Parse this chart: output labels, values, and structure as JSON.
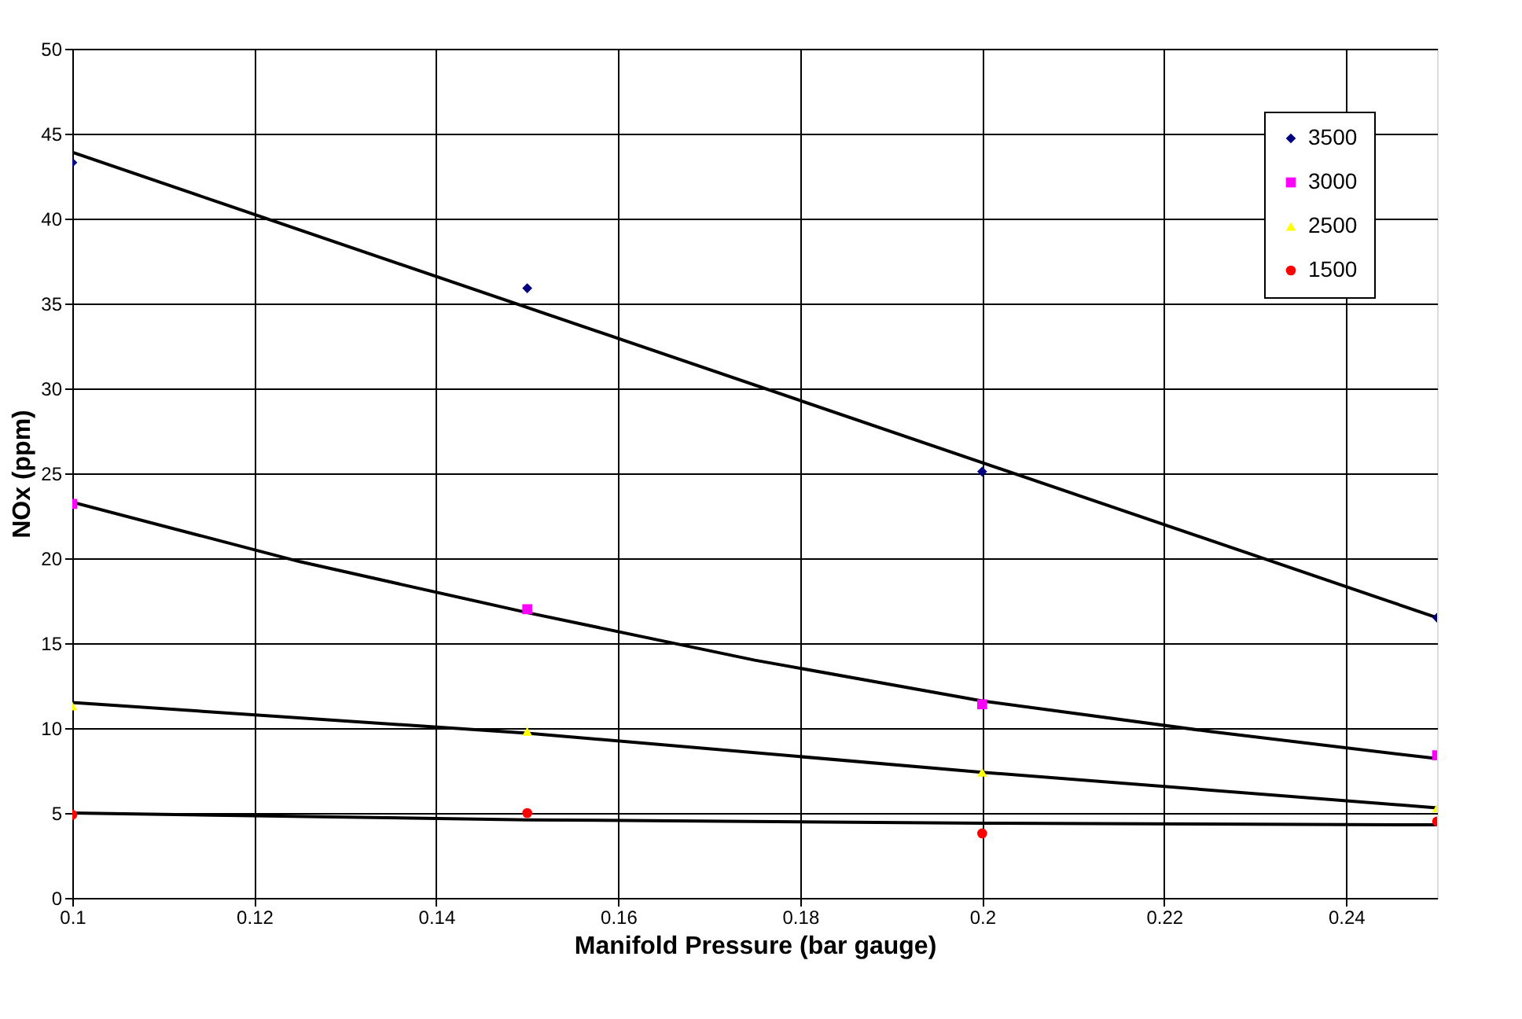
{
  "chart_data": {
    "type": "scatter",
    "xlabel": "Manifold Pressure (bar gauge)",
    "ylabel": "NOx  (ppm)",
    "x": [
      0.1,
      0.15,
      0.2,
      0.25
    ],
    "xlim": [
      0.1,
      0.25
    ],
    "xticks": [
      {
        "value": 0.1,
        "label": "0.1"
      },
      0.12,
      0.14,
      0.16,
      0.18,
      {
        "value": 0.2,
        "label": "0.2"
      },
      0.22,
      0.24
    ],
    "ylim": [
      0,
      50
    ],
    "yticks": [
      0,
      5,
      10,
      15,
      20,
      25,
      30,
      35,
      40,
      45,
      50
    ],
    "grid": true,
    "legend": "top right",
    "series": [
      {
        "name": "3500",
        "color": "#000080",
        "marker": "diamond",
        "values": [
          43.3,
          35.9,
          25.1,
          16.5
        ]
      },
      {
        "name": "3000",
        "color": "#ff00ff",
        "marker": "square",
        "values": [
          23.2,
          17.0,
          11.4,
          8.4
        ]
      },
      {
        "name": "2500",
        "color": "#ffff00",
        "marker": "triangle",
        "values": [
          11.3,
          9.8,
          7.4,
          5.3
        ]
      },
      {
        "name": "1500",
        "color": "#ff0000",
        "marker": "circle",
        "values": [
          4.9,
          5.0,
          3.8,
          4.5
        ]
      },
      {
        "type": "line",
        "color": "#000000",
        "x": [
          0.1,
          0.25
        ],
        "values": [
          43.9,
          16.5
        ]
      },
      {
        "type": "line",
        "color": "#000000",
        "x": [
          0.1,
          0.125,
          0.15,
          0.175,
          0.2,
          0.225,
          0.25
        ],
        "values": [
          23.3,
          19.8,
          16.8,
          14.0,
          11.6,
          9.8,
          8.2
        ]
      },
      {
        "type": "line",
        "color": "#000000",
        "x": [
          0.1,
          0.15,
          0.2,
          0.25
        ],
        "values": [
          11.5,
          9.7,
          7.4,
          5.3
        ]
      },
      {
        "type": "line",
        "color": "#000000",
        "x": [
          0.1,
          0.15,
          0.2,
          0.25
        ],
        "values": [
          5.0,
          4.6,
          4.4,
          4.3
        ]
      }
    ]
  }
}
